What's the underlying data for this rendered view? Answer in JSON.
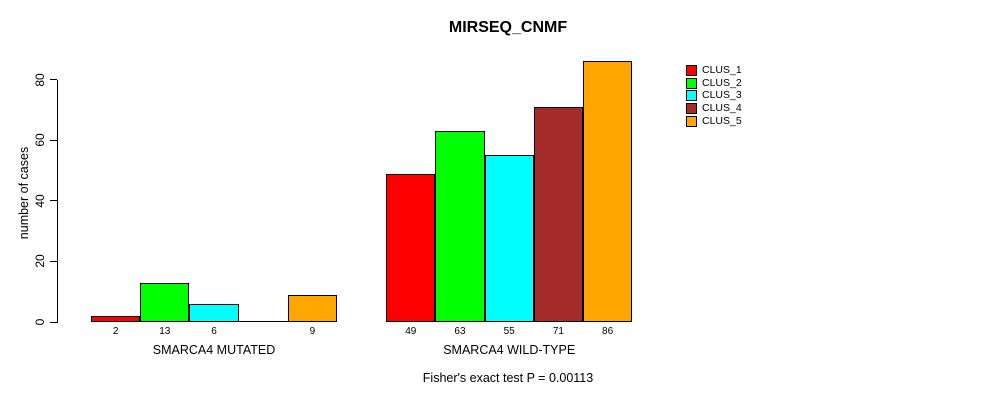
{
  "chart_data": {
    "type": "bar",
    "title": "MIRSEQ_CNMF",
    "ylabel": "number of cases",
    "xlabel": "",
    "categories": [
      "SMARCA4 MUTATED",
      "SMARCA4 WILD-TYPE"
    ],
    "series": [
      {
        "name": "CLUS_1",
        "color": "#FF0000",
        "values": [
          2,
          49
        ]
      },
      {
        "name": "CLUS_2",
        "color": "#00FF00",
        "values": [
          13,
          63
        ]
      },
      {
        "name": "CLUS_3",
        "color": "#00FFFF",
        "values": [
          6,
          55
        ]
      },
      {
        "name": "CLUS_4",
        "color": "#A52A2A",
        "values": [
          0,
          71
        ]
      },
      {
        "name": "CLUS_5",
        "color": "#FFA500",
        "values": [
          9,
          86
        ]
      }
    ],
    "yticks": [
      0,
      20,
      40,
      60,
      80
    ],
    "ylim": [
      0,
      86
    ],
    "bar_labels": [
      [
        "2",
        "13",
        "6",
        "",
        "9"
      ],
      [
        "49",
        "63",
        "55",
        "71",
        "86"
      ]
    ],
    "legend_position": "right",
    "grid": false,
    "annotation": "Fisher's exact test P = 0.00113"
  }
}
